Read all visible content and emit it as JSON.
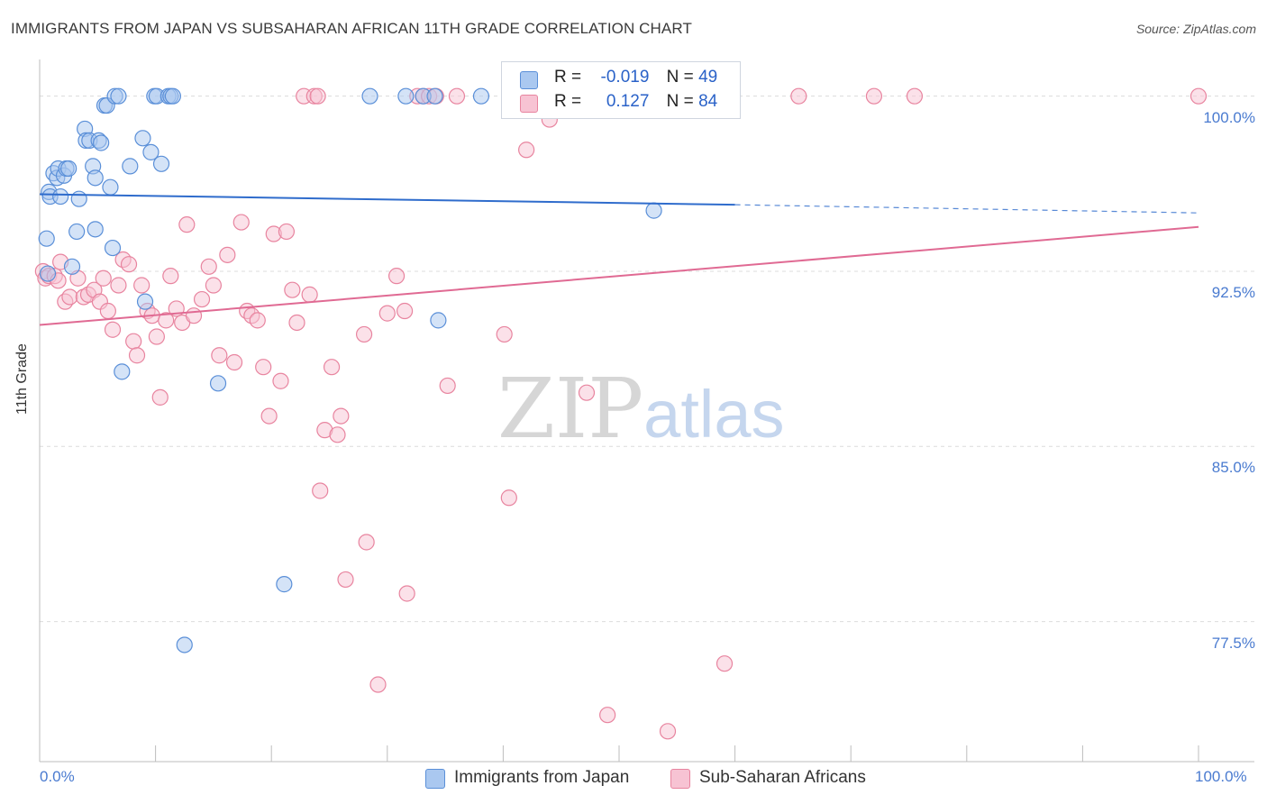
{
  "header": {
    "title": "IMMIGRANTS FROM JAPAN VS SUBSAHARAN AFRICAN 11TH GRADE CORRELATION CHART",
    "source": "Source: ZipAtlas.com"
  },
  "watermark": {
    "zip": "ZIP",
    "atlas": "atlas"
  },
  "legend_top": {
    "r_label": "R =",
    "n_label": "N =",
    "japan": {
      "r": "-0.019",
      "n": "49"
    },
    "africa": {
      "r": "0.127",
      "n": "84"
    }
  },
  "colors": {
    "japan_fill": "#aac8f0",
    "japan_stroke": "#5a8fd8",
    "japan_line": "#2f6ccc",
    "africa_fill": "#f7c3d3",
    "africa_stroke": "#e8849f",
    "africa_line": "#e06a93",
    "tick_text": "#4a7bd0",
    "grid": "#dcdcdc"
  },
  "chart_data": {
    "type": "scatter",
    "title": "IMMIGRANTS FROM JAPAN VS SUBSAHARAN AFRICAN 11TH GRADE CORRELATION CHART",
    "xlabel": "",
    "ylabel": "11th Grade",
    "xlim": [
      0,
      100
    ],
    "ylim": [
      71.5,
      101.3
    ],
    "x_tick_labels": [
      "0.0%",
      "100.0%"
    ],
    "y_ticks": [
      100.0,
      92.5,
      85.0,
      77.5
    ],
    "y_tick_labels": [
      "100.0%",
      "92.5%",
      "85.0%",
      "77.5%"
    ],
    "grid": "horizontal dashed",
    "legend": "top-center and bottom",
    "series": [
      {
        "name": "Immigrants from Japan",
        "color": "#5a8fd8",
        "points": [
          [
            0.6,
            93.9
          ],
          [
            0.7,
            92.4
          ],
          [
            0.8,
            95.9
          ],
          [
            0.9,
            95.7
          ],
          [
            1.2,
            96.7
          ],
          [
            1.5,
            96.5
          ],
          [
            1.6,
            96.9
          ],
          [
            1.8,
            95.7
          ],
          [
            2.1,
            96.6
          ],
          [
            2.3,
            96.9
          ],
          [
            2.5,
            96.9
          ],
          [
            2.8,
            92.7
          ],
          [
            3.2,
            94.2
          ],
          [
            3.4,
            95.6
          ],
          [
            3.9,
            98.6
          ],
          [
            4.0,
            98.1
          ],
          [
            4.3,
            98.1
          ],
          [
            4.6,
            97.0
          ],
          [
            4.8,
            94.3
          ],
          [
            4.8,
            96.5
          ],
          [
            5.1,
            98.1
          ],
          [
            5.3,
            98.0
          ],
          [
            5.6,
            99.6
          ],
          [
            5.8,
            99.6
          ],
          [
            6.1,
            96.1
          ],
          [
            6.3,
            93.5
          ],
          [
            6.5,
            100.0
          ],
          [
            6.8,
            100.0
          ],
          [
            7.1,
            88.2
          ],
          [
            7.8,
            97.0
          ],
          [
            8.9,
            98.2
          ],
          [
            9.1,
            91.2
          ],
          [
            9.6,
            97.6
          ],
          [
            9.9,
            100.0
          ],
          [
            10.1,
            100.0
          ],
          [
            10.5,
            97.1
          ],
          [
            11.1,
            100.0
          ],
          [
            11.3,
            100.0
          ],
          [
            11.5,
            100.0
          ],
          [
            12.5,
            76.5
          ],
          [
            15.4,
            87.7
          ],
          [
            21.1,
            79.1
          ],
          [
            28.5,
            100.0
          ],
          [
            31.6,
            100.0
          ],
          [
            33.1,
            100.0
          ],
          [
            34.1,
            100.0
          ],
          [
            34.4,
            90.4
          ],
          [
            38.1,
            100.0
          ],
          [
            53.0,
            95.1
          ]
        ],
        "trend": {
          "x": [
            0,
            60,
            100
          ],
          "y": [
            95.8,
            95.35,
            95.0
          ],
          "solid_until": 60
        }
      },
      {
        "name": "Sub-Saharan Africans",
        "color": "#e8849f",
        "points": [
          [
            0.3,
            92.5
          ],
          [
            0.5,
            92.2
          ],
          [
            0.8,
            92.3
          ],
          [
            1.3,
            92.3
          ],
          [
            1.6,
            92.1
          ],
          [
            1.8,
            92.9
          ],
          [
            2.2,
            91.2
          ],
          [
            2.6,
            91.4
          ],
          [
            3.3,
            92.2
          ],
          [
            3.8,
            91.4
          ],
          [
            4.2,
            91.5
          ],
          [
            4.7,
            91.7
          ],
          [
            5.2,
            91.2
          ],
          [
            5.5,
            92.2
          ],
          [
            5.9,
            90.8
          ],
          [
            6.3,
            90.0
          ],
          [
            6.8,
            91.9
          ],
          [
            7.2,
            93.0
          ],
          [
            7.7,
            92.8
          ],
          [
            8.1,
            89.5
          ],
          [
            8.4,
            88.9
          ],
          [
            8.8,
            91.9
          ],
          [
            9.3,
            90.8
          ],
          [
            9.7,
            90.6
          ],
          [
            10.1,
            89.7
          ],
          [
            10.4,
            87.1
          ],
          [
            10.9,
            90.4
          ],
          [
            11.3,
            92.3
          ],
          [
            11.8,
            90.9
          ],
          [
            12.3,
            90.3
          ],
          [
            12.7,
            94.5
          ],
          [
            13.3,
            90.6
          ],
          [
            14.0,
            91.3
          ],
          [
            14.6,
            92.7
          ],
          [
            15.0,
            91.9
          ],
          [
            15.5,
            88.9
          ],
          [
            16.2,
            93.2
          ],
          [
            16.8,
            88.6
          ],
          [
            17.4,
            94.6
          ],
          [
            17.9,
            90.8
          ],
          [
            18.3,
            90.6
          ],
          [
            18.8,
            90.4
          ],
          [
            19.3,
            88.4
          ],
          [
            19.8,
            86.3
          ],
          [
            20.2,
            94.1
          ],
          [
            20.8,
            87.8
          ],
          [
            21.3,
            94.2
          ],
          [
            21.8,
            91.7
          ],
          [
            22.2,
            90.3
          ],
          [
            22.8,
            100.0
          ],
          [
            23.3,
            91.5
          ],
          [
            23.7,
            100.0
          ],
          [
            24.0,
            100.0
          ],
          [
            24.6,
            85.7
          ],
          [
            24.2,
            83.1
          ],
          [
            25.2,
            88.4
          ],
          [
            25.7,
            85.5
          ],
          [
            26.0,
            86.3
          ],
          [
            26.4,
            79.3
          ],
          [
            28.0,
            89.8
          ],
          [
            28.2,
            80.9
          ],
          [
            29.2,
            74.8
          ],
          [
            30.0,
            90.7
          ],
          [
            30.8,
            92.3
          ],
          [
            31.5,
            90.8
          ],
          [
            31.7,
            78.7
          ],
          [
            32.6,
            100.0
          ],
          [
            33.1,
            100.0
          ],
          [
            33.6,
            100.0
          ],
          [
            34.2,
            100.0
          ],
          [
            35.2,
            87.6
          ],
          [
            36.0,
            100.0
          ],
          [
            40.1,
            89.8
          ],
          [
            40.5,
            82.8
          ],
          [
            42.0,
            97.7
          ],
          [
            44.0,
            99.0
          ],
          [
            45.0,
            100.0
          ],
          [
            47.2,
            87.3
          ],
          [
            49.0,
            73.5
          ],
          [
            54.2,
            72.8
          ],
          [
            59.1,
            75.7
          ],
          [
            65.5,
            100.0
          ],
          [
            72.0,
            100.0
          ],
          [
            75.5,
            100.0
          ],
          [
            100.0,
            100.0
          ]
        ],
        "trend": {
          "x": [
            0,
            100
          ],
          "y": [
            90.2,
            94.4
          ]
        }
      }
    ]
  }
}
